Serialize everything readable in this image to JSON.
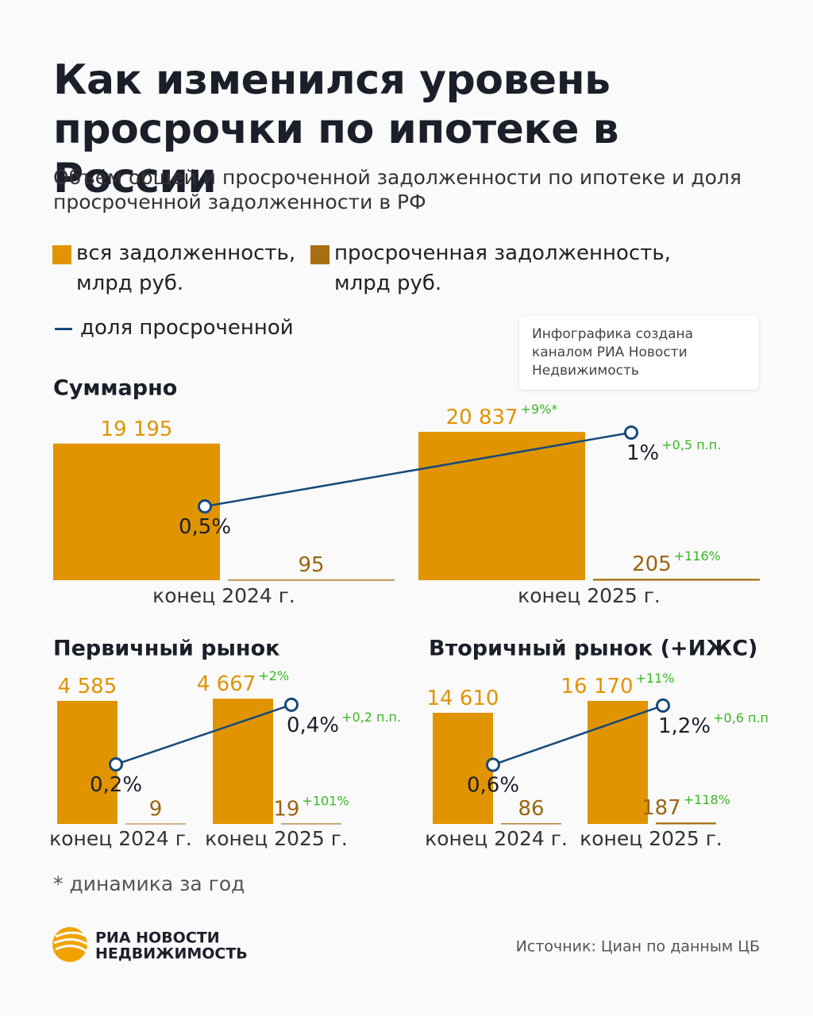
{
  "header": {
    "title": "Как изменился уровень просрочки по ипотеке в России",
    "subtitle": "Объём общей и просроченной задолженности по ипотеке и доля просроченной задолженности в РФ",
    "credit": "Инфографика создана каналом РИА Новости Недвижимость"
  },
  "chart_data": [
    {
      "type": "bar_line",
      "title": "Суммарно",
      "categories": [
        "конец 2024 г.",
        "конец 2025 г."
      ],
      "series": [
        {
          "name": "вся задолженность, млрд руб.",
          "color": "#e09400",
          "values": [
            19195,
            20837
          ],
          "value_labels": [
            "19 195",
            "20 837"
          ],
          "change_label": "+9%*"
        },
        {
          "name": "просроченная задолженность, млрд руб.",
          "color": "#a86f12",
          "values": [
            95,
            205
          ],
          "change_label": "+116%"
        },
        {
          "name": "доля просроченной",
          "color": "#174a79",
          "type": "line",
          "axis": "y2",
          "values": [
            0.5,
            1
          ],
          "value_labels": [
            "0,5%",
            "1%"
          ],
          "change_label": "+0,5 п.п."
        }
      ],
      "ylim": [
        0,
        22300
      ],
      "y2lim": [
        0,
        1.075
      ]
    },
    {
      "type": "bar_line",
      "title": "Первичный рынок",
      "categories": [
        "конец 2024 г.",
        "конец 2025 г."
      ],
      "series": [
        {
          "color": "#e09400",
          "values": [
            4585,
            4667
          ],
          "value_labels": [
            "4 585",
            "4 667"
          ],
          "change_label": "+2%"
        },
        {
          "color": "#a86f12",
          "values": [
            9,
            19
          ],
          "change_label": "+101%"
        },
        {
          "color": "#174a79",
          "type": "line",
          "axis": "y2",
          "values": [
            0.2,
            0.4
          ],
          "value_labels": [
            "0,2%",
            "0,4%"
          ],
          "change_label": "+0,2 п.п."
        }
      ],
      "ylim": [
        0,
        5916
      ],
      "y2lim": [
        0,
        0.533
      ]
    },
    {
      "type": "bar_line",
      "title": "Вторичный рынок (+ИЖС)",
      "categories": [
        "конец 2024 г.",
        "конец 2025 г."
      ],
      "series": [
        {
          "color": "#e09400",
          "values": [
            14610,
            16170
          ],
          "value_labels": [
            "14 610",
            "16 170"
          ],
          "change_label": "+11%"
        },
        {
          "color": "#a86f12",
          "values": [
            86,
            187
          ],
          "change_label": "+118%"
        },
        {
          "color": "#174a79",
          "type": "line",
          "axis": "y2",
          "values": [
            0.6,
            1.2
          ],
          "value_labels": [
            "0,6%",
            "1,2%"
          ],
          "change_label": "+0,6 п.п"
        }
      ],
      "ylim": [
        0,
        20871
      ],
      "y2lim": [
        0,
        1.61
      ]
    }
  ],
  "footnote": "* динамика за год",
  "source": "Источник: Циан по данным ЦБ",
  "logo": [
    "РИА НОВОСТИ",
    "НЕДВИЖИМОСТЬ"
  ]
}
